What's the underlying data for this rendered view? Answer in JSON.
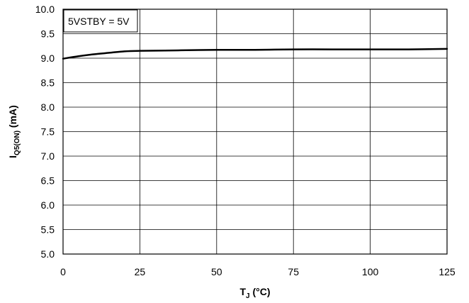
{
  "chart_data": {
    "type": "line",
    "title": "",
    "xlabel": "T",
    "xlabel_sub": "J",
    "xlabel_unit": " (°C)",
    "ylabel": "I",
    "ylabel_sub": "Q5(ON)",
    "ylabel_unit": " (mA)",
    "xlim": [
      0,
      125
    ],
    "ylim": [
      5.0,
      10.0
    ],
    "x_ticks": [
      "0",
      "25",
      "50",
      "75",
      "100",
      "125"
    ],
    "y_ticks": [
      "10.0",
      "9.5",
      "9.0",
      "8.5",
      "8.0",
      "7.5",
      "7.0",
      "6.5",
      "6.0",
      "5.5",
      "5.0"
    ],
    "grid": true,
    "legend": "none",
    "annotation": "5VSTBY = 5V",
    "series": [
      {
        "color": "#000000",
        "x": [
          0,
          5,
          10,
          15,
          20,
          25,
          37.5,
          50,
          62.5,
          75,
          87.5,
          100,
          112.5,
          125
        ],
        "y": [
          8.99,
          9.04,
          9.08,
          9.11,
          9.14,
          9.15,
          9.16,
          9.17,
          9.17,
          9.18,
          9.18,
          9.18,
          9.18,
          9.19
        ]
      }
    ]
  }
}
